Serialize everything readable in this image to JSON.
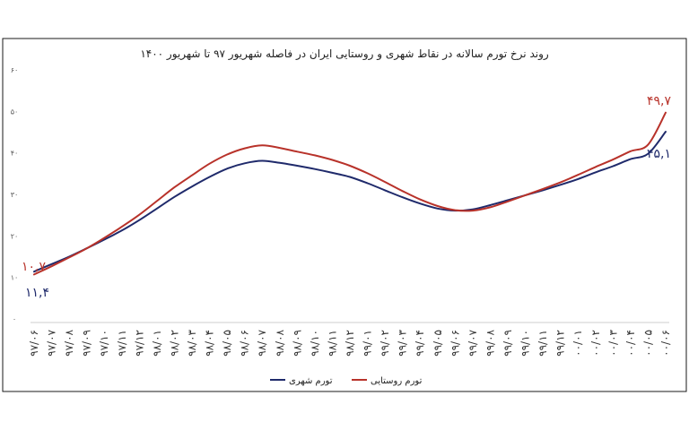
{
  "chart_data": {
    "type": "line",
    "title": "روند نرخ تورم سالانه در نقاط شهری و روستایی ایران در فاصله شهریور ۹۷ تا شهریور ۱۴۰۰",
    "ylim": [
      0,
      60
    ],
    "yticks": [
      "۰",
      "۱۰",
      "۲۰",
      "۳۰",
      "۴۰",
      "۵۰",
      "۶۰"
    ],
    "categories": [
      "۹۷/۰۶",
      "۹۷/۰۷",
      "۹۷/۰۸",
      "۹۷/۰۹",
      "۹۷/۱۰",
      "۹۷/۱۱",
      "۹۷/۱۲",
      "۹۸/۰۱",
      "۹۸/۰۲",
      "۹۸/۰۳",
      "۹۸/۰۴",
      "۹۸/۰۵",
      "۹۸/۰۶",
      "۹۸/۰۷",
      "۹۸/۰۸",
      "۹۸/۰۹",
      "۹۸/۱۰",
      "۹۸/۱۱",
      "۹۸/۱۲",
      "۹۹/۰۱",
      "۹۹/۰۲",
      "۹۹/۰۳",
      "۹۹/۰۴",
      "۹۹/۰۵",
      "۹۹/۰۶",
      "۹۹/۰۷",
      "۹۹/۰۸",
      "۹۹/۰۹",
      "۹۹/۱۰",
      "۹۹/۱۱",
      "۹۹/۱۲",
      "۰۰/۰۱",
      "۰۰/۰۲",
      "۰۰/۰۳",
      "۰۰/۰۴",
      "۰۰/۰۵",
      "۰۰/۰۶"
    ],
    "series": [
      {
        "name": "تورم شهری",
        "color": "#1f2a6b",
        "values": [
          11.4,
          13.2,
          15.0,
          17.0,
          19.1,
          21.3,
          23.8,
          26.6,
          29.4,
          31.9,
          34.2,
          36.2,
          37.5,
          38.1,
          37.6,
          36.9,
          36.1,
          35.2,
          34.2,
          32.7,
          31.0,
          29.3,
          27.8,
          26.6,
          26.1,
          26.4,
          27.4,
          28.6,
          29.8,
          31.0,
          32.3,
          33.7,
          35.3,
          36.8,
          38.5,
          39.8,
          45.1
        ]
      },
      {
        "name": "تورم روستایی",
        "color": "#b8322a",
        "values": [
          10.7,
          12.7,
          14.8,
          17.0,
          19.5,
          22.2,
          25.1,
          28.4,
          31.7,
          34.6,
          37.4,
          39.6,
          41.1,
          41.8,
          41.2,
          40.3,
          39.4,
          38.3,
          36.9,
          35.1,
          33.0,
          30.8,
          28.8,
          27.2,
          26.2,
          26.1,
          26.9,
          28.3,
          29.8,
          31.3,
          32.9,
          34.7,
          36.6,
          38.4,
          40.4,
          42.0,
          49.7
        ]
      }
    ],
    "annotations": {
      "urban_start": "۱۱,۴",
      "rural_start": "۱۰,۷",
      "rural_end": "۴۹,۷",
      "urban_end": "۴۵,۱"
    },
    "legend_position": "bottom",
    "grid": false
  }
}
